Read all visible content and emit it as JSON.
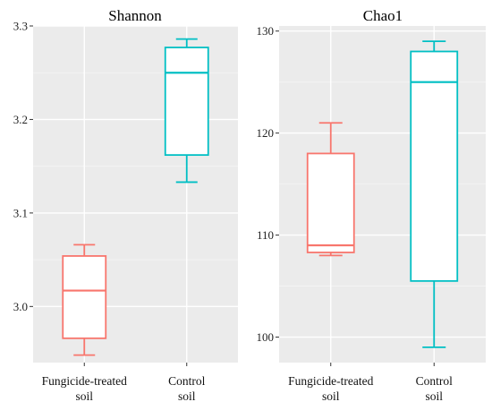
{
  "chart_data": [
    {
      "type": "box",
      "title": "Shannon",
      "xlabel": "",
      "ylabel": "",
      "ylim": [
        2.94,
        3.3
      ],
      "yticks": [
        3.0,
        3.1,
        3.2,
        3.3
      ],
      "ytick_labels": [
        "3.0",
        "3.1",
        "3.2",
        "3.3"
      ],
      "grid": true,
      "categories": [
        {
          "lines": [
            "Fungicide-treated",
            "soil"
          ],
          "color": "#F8766D",
          "min": 2.948,
          "q1": 2.966,
          "median": 3.017,
          "q3": 3.054,
          "max": 3.066
        },
        {
          "lines": [
            "Control",
            "soil"
          ],
          "color": "#00BFC4",
          "min": 3.133,
          "q1": 3.162,
          "median": 3.25,
          "q3": 3.277,
          "max": 3.286
        }
      ]
    },
    {
      "type": "box",
      "title": "Chao1",
      "xlabel": "",
      "ylabel": "",
      "ylim": [
        97.5,
        130.5
      ],
      "yticks": [
        100,
        110,
        120,
        130
      ],
      "ytick_labels": [
        "100",
        "110",
        "120",
        "130"
      ],
      "grid": true,
      "categories": [
        {
          "lines": [
            "Fungicide-treated",
            "soil"
          ],
          "color": "#F8766D",
          "min": 108,
          "q1": 108.3,
          "median": 109,
          "q3": 118,
          "max": 121
        },
        {
          "lines": [
            "Control",
            "soil"
          ],
          "color": "#00BFC4",
          "min": 99,
          "q1": 105.5,
          "median": 125,
          "q3": 128,
          "max": 129
        }
      ]
    }
  ]
}
